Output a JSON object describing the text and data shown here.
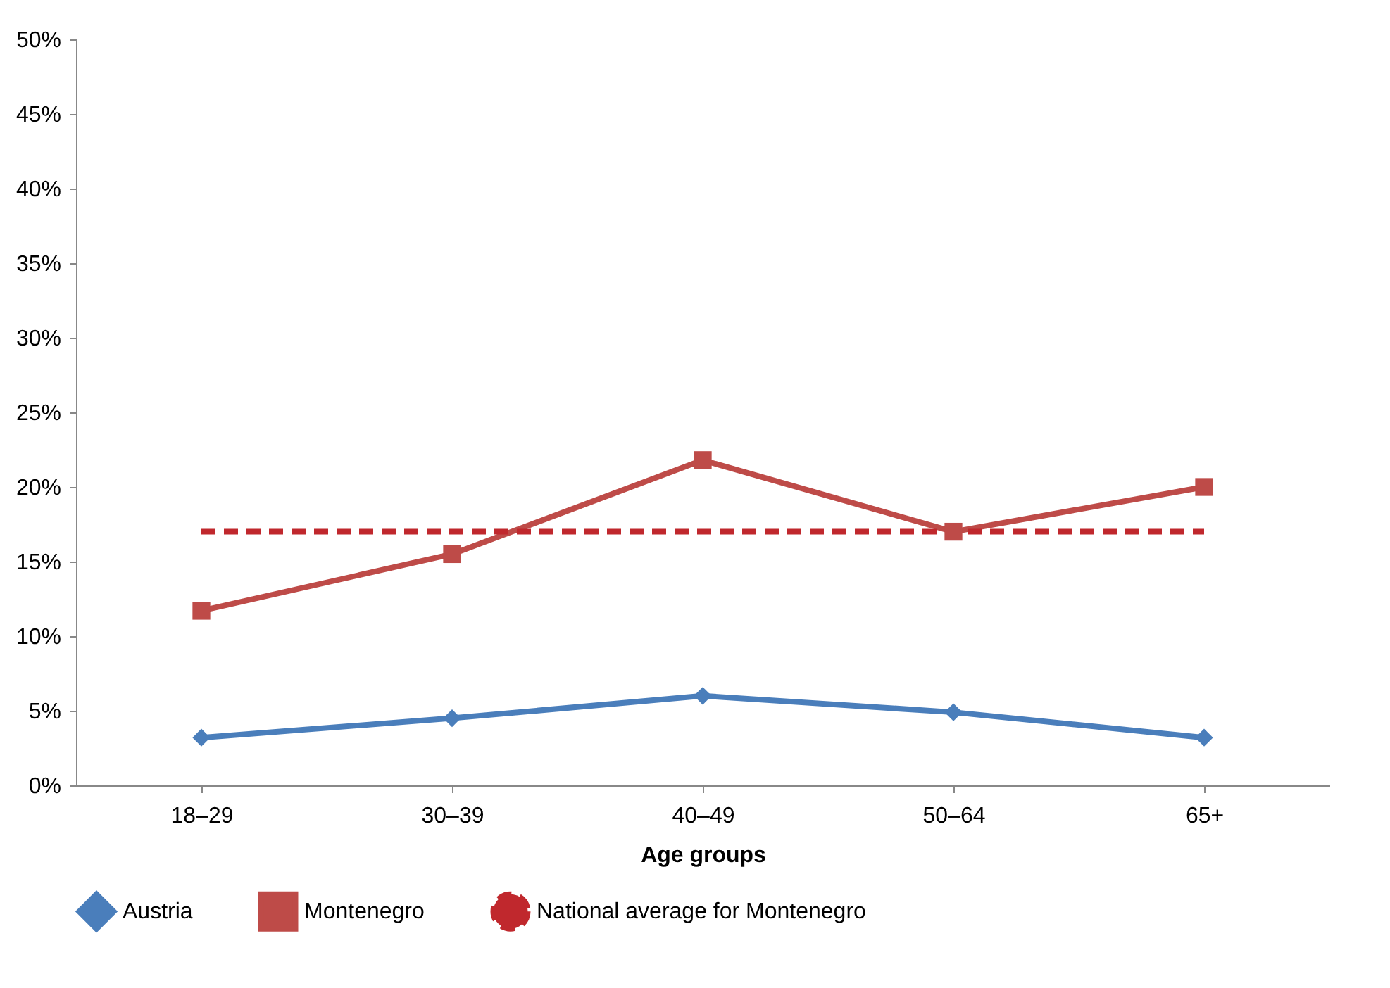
{
  "chart_data": {
    "type": "line",
    "xlabel": "Age groups",
    "categories": [
      "18–29",
      "30–39",
      "40–49",
      "50–64",
      "65+"
    ],
    "series": [
      {
        "name": "Austria",
        "color": "#4a7ebb",
        "marker": "diamond",
        "line_style": "solid",
        "values": [
          3.2,
          4.5,
          6.0,
          4.9,
          3.2
        ]
      },
      {
        "name": "Montenegro",
        "color": "#be4b48",
        "marker": "square",
        "line_style": "solid",
        "values": [
          11.7,
          15.5,
          21.8,
          17.0,
          20.0
        ]
      },
      {
        "name": "National average for Montenegro",
        "color": "#c0282d",
        "marker": "none",
        "line_style": "dashed",
        "values": [
          17.0,
          17.0,
          17.0,
          17.0,
          17.0
        ]
      }
    ],
    "ylim": [
      0,
      50
    ],
    "yticks": [
      {
        "value": 0,
        "label": "0%"
      },
      {
        "value": 5,
        "label": "5%"
      },
      {
        "value": 10,
        "label": "10%"
      },
      {
        "value": 15,
        "label": "15%"
      },
      {
        "value": 20,
        "label": "20%"
      },
      {
        "value": 25,
        "label": "25%"
      },
      {
        "value": 30,
        "label": "30%"
      },
      {
        "value": 35,
        "label": "35%"
      },
      {
        "value": 40,
        "label": "40%"
      },
      {
        "value": 45,
        "label": "45%"
      },
      {
        "value": 50,
        "label": "50%"
      }
    ],
    "grid": false,
    "legend": "bottom"
  }
}
